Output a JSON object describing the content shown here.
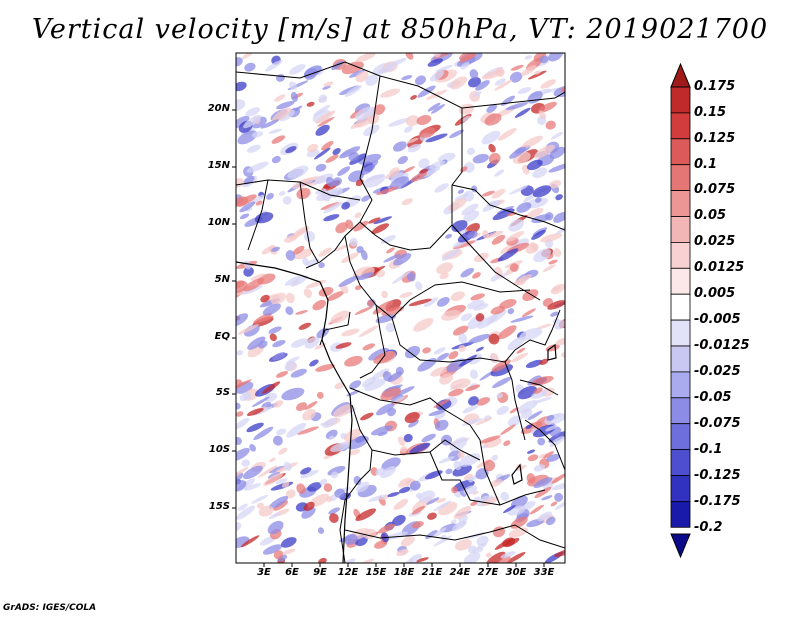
{
  "title": "Vertical velocity [m/s] at 850hPa, VT: 2019021700",
  "credit": "GrADS: IGES/COLA",
  "map": {
    "lat_labels": [
      "20N",
      "15N",
      "10N",
      "5N",
      "EQ",
      "5S",
      "10S",
      "15S"
    ],
    "lon_labels": [
      "3E",
      "6E",
      "9E",
      "12E",
      "15E",
      "18E",
      "21E",
      "24E",
      "27E",
      "30E",
      "33E"
    ],
    "field_colors": {
      "strong_ascent": "#c62828",
      "ascent": "#e87a7a",
      "weak_ascent": "#f6c9c9",
      "near_zero": "#ffffff",
      "weak_descent": "#d6d6f6",
      "descent": "#8c8ce6",
      "strong_descent": "#3c3cc8"
    }
  },
  "colorbar": {
    "levels": [
      "0.175",
      "0.15",
      "0.125",
      "0.1",
      "0.075",
      "0.05",
      "0.025",
      "0.0125",
      "0.005",
      "-0.005",
      "-0.0125",
      "-0.025",
      "-0.05",
      "-0.075",
      "-0.1",
      "-0.125",
      "-0.175",
      "-0.2"
    ],
    "colors": [
      "#a01a1a",
      "#c02a2a",
      "#d23c3c",
      "#dc5a5a",
      "#e47676",
      "#ec9696",
      "#f3b6b6",
      "#f8d2d2",
      "#fce8e8",
      "#ffffff",
      "#e2e2f8",
      "#c8c8f2",
      "#aaaaee",
      "#8c8ce6",
      "#6e6edc",
      "#4e4ed0",
      "#3232c0",
      "#1a1aaa",
      "#0a0a8a"
    ]
  }
}
